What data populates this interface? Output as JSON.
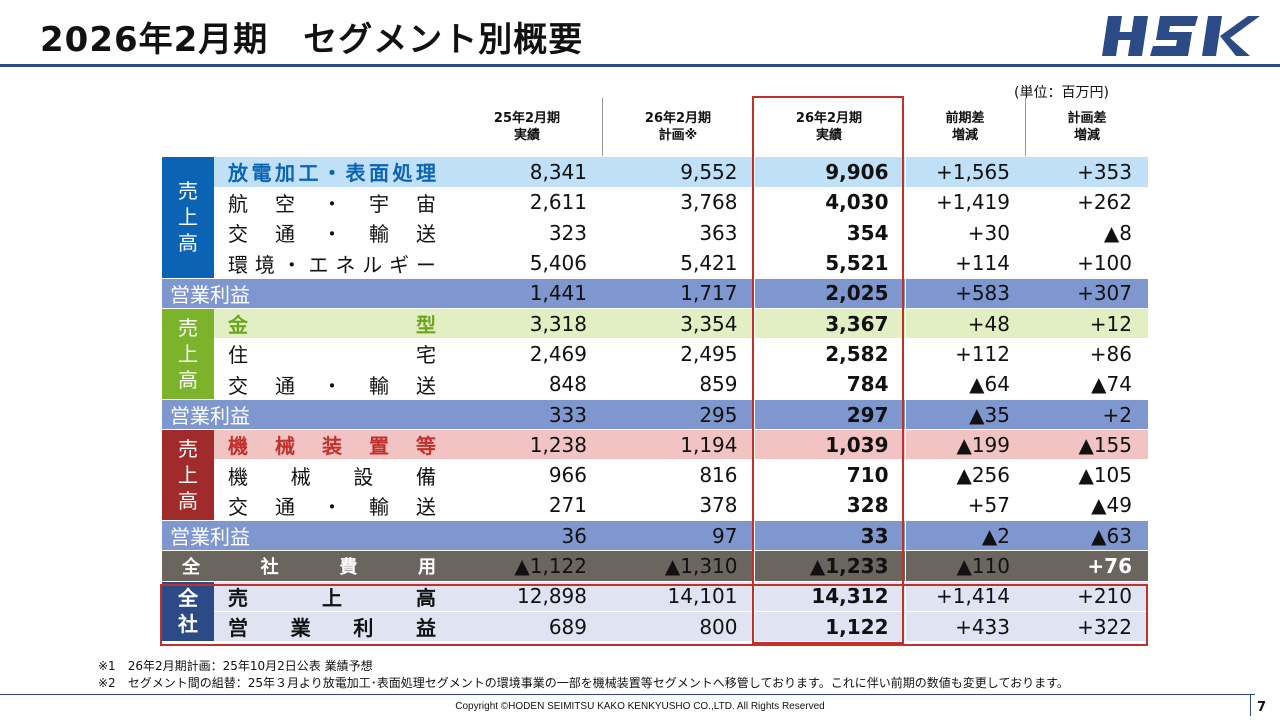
{
  "title": "2026年2月期　セグメント別概要",
  "logo_text": "HSK",
  "unit": "(単位：百万円)",
  "columns": [
    {
      "line1": "25年2月期",
      "line2": "実績"
    },
    {
      "line1": "26年2月期",
      "line2": "計画※"
    },
    {
      "line1": "26年2月期",
      "line2": "実績"
    },
    {
      "line1": "前期差",
      "line2": "増減"
    },
    {
      "line1": "計画差",
      "line2": "増減"
    }
  ],
  "sales_side_label": [
    "売",
    "上",
    "高"
  ],
  "total_side_label": [
    "全",
    "社"
  ],
  "segments": [
    {
      "color": "#0b63b4",
      "rows": [
        {
          "label": [
            "放",
            "電",
            "加",
            "工",
            "・",
            "表",
            "面",
            "処",
            "理"
          ],
          "values": [
            "8,341",
            "9,552",
            "9,906",
            "+1,565",
            "+353"
          ],
          "bg": "#bfe0f6",
          "label_color": "#0b63b4",
          "bold": true
        },
        {
          "label": [
            "航",
            "空",
            "・",
            "宇",
            "宙"
          ],
          "values": [
            "2,611",
            "3,768",
            "4,030",
            "+1,419",
            "+262"
          ]
        },
        {
          "label": [
            "交",
            "通",
            "・",
            "輸",
            "送"
          ],
          "values": [
            "323",
            "363",
            "354",
            "+30",
            "▲8"
          ]
        },
        {
          "label": [
            "環",
            "境",
            "・",
            "エ",
            "ネ",
            "ル",
            "ギ",
            "ー"
          ],
          "values": [
            "5,406",
            "5,421",
            "5,521",
            "+114",
            "+100"
          ]
        }
      ],
      "op_label": "営業利益",
      "op_values": [
        "1,441",
        "1,717",
        "2,025",
        "+583",
        "+307"
      ]
    },
    {
      "color": "#7cb32b",
      "rows": [
        {
          "label": [
            "金",
            "型"
          ],
          "values": [
            "3,318",
            "3,354",
            "3,367",
            "+48",
            "+12"
          ],
          "bg": "#e2efc3",
          "label_color": "#6aa61f",
          "bold": true
        },
        {
          "label": [
            "住",
            "宅"
          ],
          "values": [
            "2,469",
            "2,495",
            "2,582",
            "+112",
            "+86"
          ]
        },
        {
          "label": [
            "交",
            "通",
            "・",
            "輸",
            "送"
          ],
          "values": [
            "848",
            "859",
            "784",
            "▲64",
            "▲74"
          ]
        }
      ],
      "op_label": "営業利益",
      "op_values": [
        "333",
        "295",
        "297",
        "▲35",
        "+2"
      ]
    },
    {
      "color": "#a12a2a",
      "rows": [
        {
          "label": [
            "機",
            "械",
            "装",
            "置",
            "等"
          ],
          "values": [
            "1,238",
            "1,194",
            "1,039",
            "▲199",
            "▲155"
          ],
          "bg": "#f2c3c3",
          "label_color": "#c0312c",
          "bold": true
        },
        {
          "label": [
            "機",
            "械",
            "設",
            "備"
          ],
          "values": [
            "966",
            "816",
            "710",
            "▲256",
            "▲105"
          ]
        },
        {
          "label": [
            "交",
            "通",
            "・",
            "輸",
            "送"
          ],
          "values": [
            "271",
            "378",
            "328",
            "+57",
            "▲49"
          ]
        }
      ],
      "op_label": "営業利益",
      "op_values": [
        "36",
        "97",
        "33",
        "▲2",
        "▲63"
      ]
    }
  ],
  "corporate_expense": {
    "label": [
      "全",
      "社",
      "費",
      "用"
    ],
    "values": [
      "▲1,122",
      "▲1,310",
      "▲1,233",
      "▲110",
      "+76"
    ]
  },
  "total": {
    "rows": [
      {
        "label": [
          "売",
          "上",
          "高"
        ],
        "values": [
          "12,898",
          "14,101",
          "14,312",
          "+1,414",
          "+210"
        ]
      },
      {
        "label": [
          "営",
          "業",
          "利",
          "益"
        ],
        "values": [
          "689",
          "800",
          "1,122",
          "+433",
          "+322"
        ]
      }
    ]
  },
  "notes": [
    "※1　26年2月期計画：25年10月2日公表 業績予想",
    "※2　セグメント間の組替：25年３月より放電加工･表面処理セグメントの環境事業の一部を機械装置等セグメントへ移管しております。これに伴い前期の数値も変更しております。"
  ],
  "copyright": "Copyright ©HODEN SEIMITSU KAKO KENKYUSHO CO.,LTD. All Rights Reserved",
  "page_number": "7",
  "colors": {
    "op_row_bg": "#7f97cf",
    "white_row_bg": "#ffffff",
    "expense_bg": "#6b6560",
    "total_side_bg": "#2c4b86",
    "total_row_bg": "#dfe3f2",
    "frame": "#c0312c",
    "brand": "#2c4b86"
  }
}
